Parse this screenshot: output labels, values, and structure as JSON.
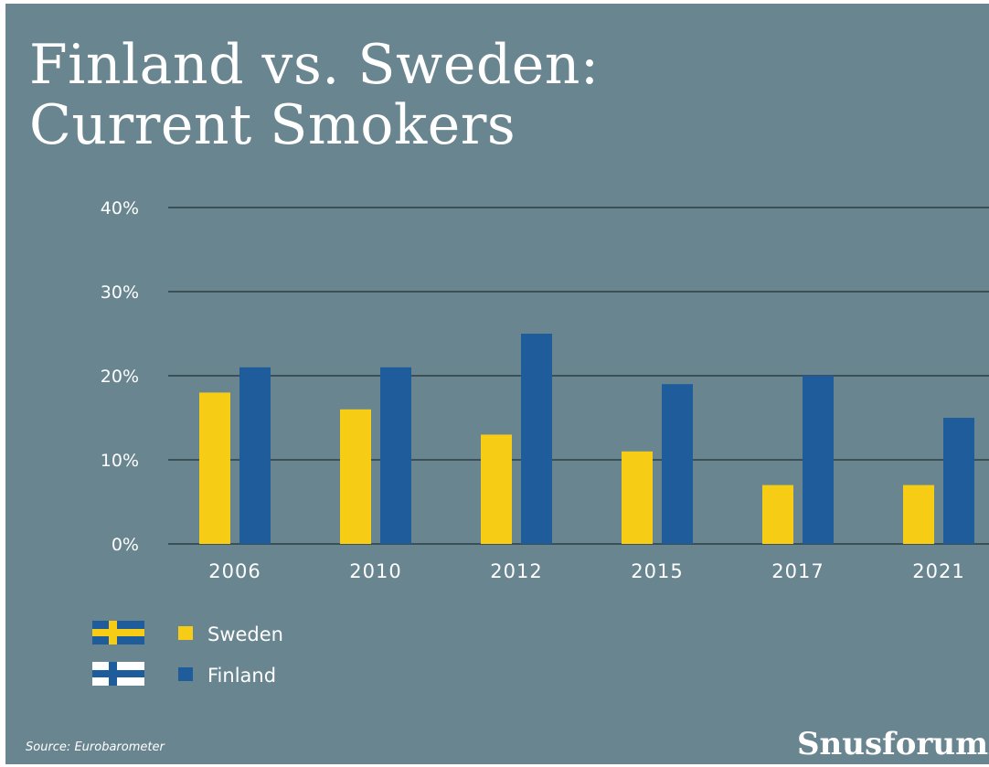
{
  "title": {
    "line1": "Finland vs. Sweden:",
    "line2": "Current Smokers"
  },
  "chart_data": {
    "type": "bar",
    "categories": [
      "2006",
      "2010",
      "2012",
      "2015",
      "2017",
      "2021"
    ],
    "series": [
      {
        "name": "Sweden",
        "values": [
          18,
          16,
          13,
          11,
          7,
          7
        ],
        "color": "#f6cc15"
      },
      {
        "name": "Finland",
        "values": [
          21,
          21,
          25,
          19,
          20,
          15
        ],
        "color": "#1f5c9b"
      }
    ],
    "ylim": [
      0,
      40
    ],
    "yticks": [
      "0%",
      "10%",
      "20%",
      "30%",
      "40%"
    ],
    "ytick_values": [
      0,
      10,
      20,
      30,
      40
    ],
    "grid": true,
    "legend_position": "bottom-left"
  },
  "legend": {
    "items": [
      {
        "label": "Sweden",
        "flag_icon": "sweden-flag-icon"
      },
      {
        "label": "Finland",
        "flag_icon": "finland-flag-icon"
      }
    ]
  },
  "source": "Source: Eurobarometer",
  "brand": "Snusforumet",
  "colors": {
    "background": "#688590",
    "sweden": "#f6cc15",
    "finland": "#1f5c9b",
    "gridline": "#2d3e45",
    "text": "#ffffff"
  }
}
